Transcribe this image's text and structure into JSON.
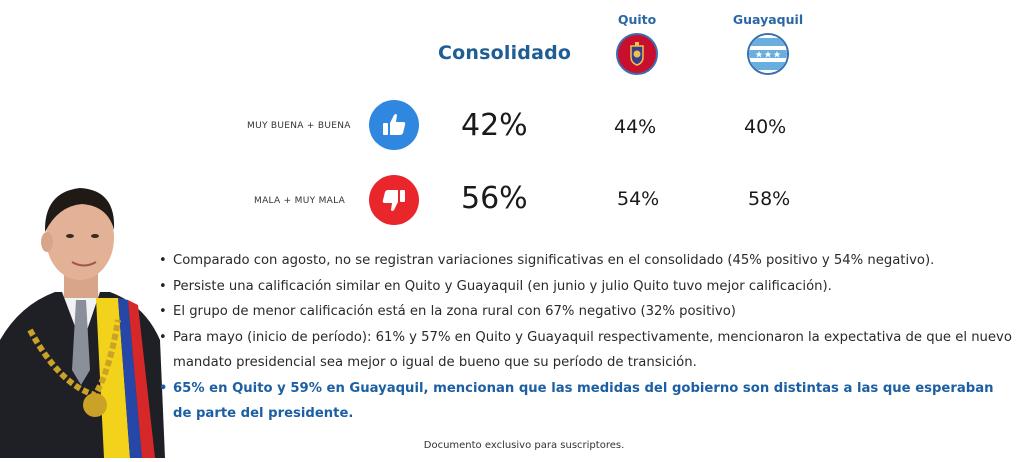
{
  "header": {
    "consolidado_label": "Consolidado",
    "quito_label": "Quito",
    "guayaquil_label": "Guayaquil"
  },
  "rows": [
    {
      "label": "MUY BUENA + BUENA",
      "icon": "thumbs-up-icon",
      "color": "#2f87e0",
      "consolidado": "42%",
      "quito": "44%",
      "guayaquil": "40%"
    },
    {
      "label": "MALA + MUY MALA",
      "icon": "thumbs-down-icon",
      "color": "#e8262c",
      "consolidado": "56%",
      "quito": "54%",
      "guayaquil": "58%"
    }
  ],
  "bullets": [
    "Comparado con agosto, no se registran variaciones significativas en el consolidado (45% positivo y 54% negativo).",
    "Persiste una calificación similar en Quito y Guayaquil (en junio y julio Quito tuvo mejor calificación).",
    "El grupo de menor calificación está en la zona rural con 67% negativo (32% positivo)",
    "Para mayo (inicio de período): 61% y 57% en Quito y Guayaquil respectivamente, mencionaron la expectativa de que el nuevo mandato presidencial sea mejor o igual de bueno que su período de transición.",
    "65% en Quito y 59% en Guayaquil, mencionan que las medidas del gobierno son distintas a las que esperaban de parte del presidente."
  ],
  "footer": "Documento exclusivo para suscriptores.",
  "colors": {
    "accent_blue": "#1f5d95",
    "highlight_blue": "#1c5fa3",
    "positive": "#2f87e0",
    "negative": "#e8262c"
  }
}
